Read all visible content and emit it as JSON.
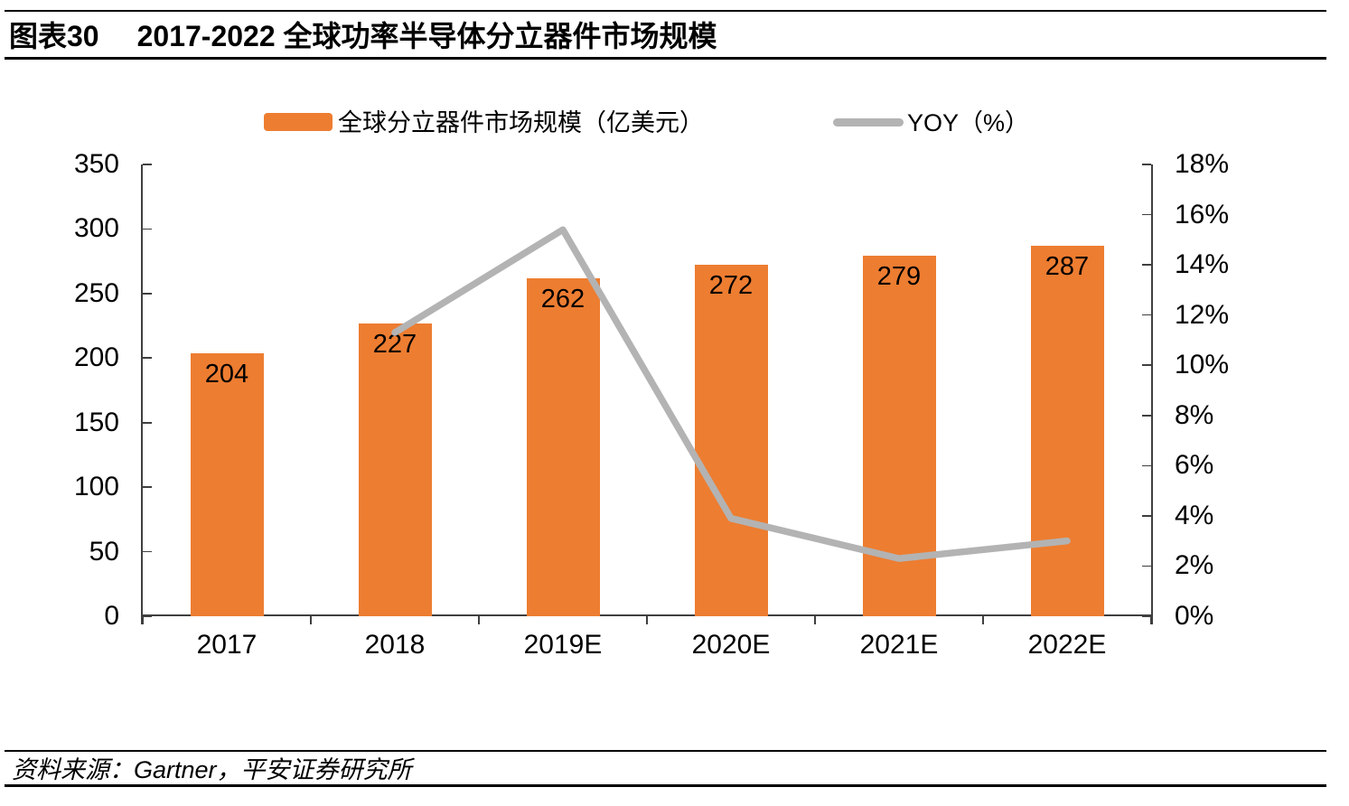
{
  "header": {
    "figure_label": "图表30",
    "title": "2017-2022 全球功率半导体分立器件市场规模"
  },
  "chart_data": {
    "type": "combo",
    "categories": [
      "2017",
      "2018",
      "2019E",
      "2020E",
      "2021E",
      "2022E"
    ],
    "series": [
      {
        "name": "全球分立器件市场规模（亿美元）",
        "type": "bar",
        "axis": "left",
        "color": "#ED7D31",
        "values": [
          204,
          227,
          262,
          272,
          279,
          287
        ]
      },
      {
        "name": "YOY（%）",
        "type": "line",
        "axis": "right",
        "color": "#B3B3B3",
        "values": [
          null,
          11.3,
          15.4,
          3.9,
          2.3,
          3.0
        ]
      }
    ],
    "left_axis": {
      "min": 0,
      "max": 350,
      "step": 50
    },
    "right_axis": {
      "min": 0,
      "max": 18,
      "step": 2,
      "suffix": "%"
    },
    "legend_position": "top",
    "grid": false,
    "bar_value_labels": "inside-end"
  },
  "footer": {
    "source_text": "资料来源：Gartner，平安证券研究所"
  },
  "colors": {
    "bar": "#ED7D31",
    "line": "#B3B3B3",
    "axis": "#3F3F3F",
    "rule": "#000000",
    "text": "#000000"
  }
}
